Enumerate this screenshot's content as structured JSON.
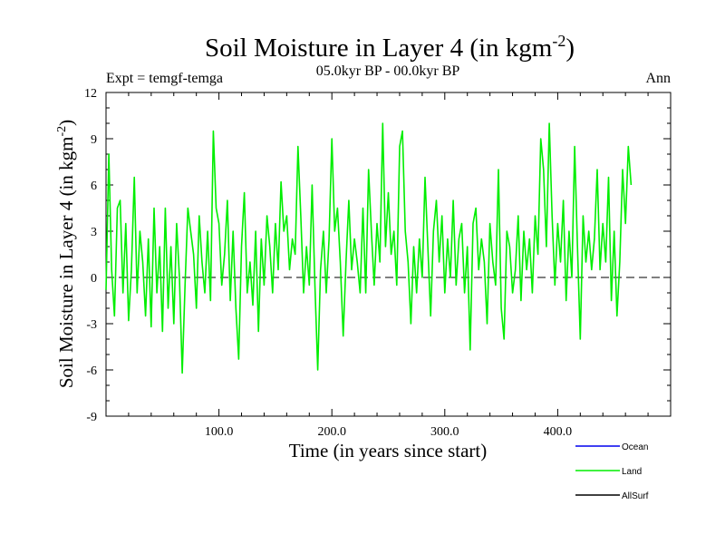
{
  "colors": {
    "land": "#00ee00",
    "ocean": "#0000ee",
    "allsurf": "#000000",
    "axis": "#000000"
  },
  "chart_data": {
    "type": "line",
    "title_main": "Soil Moisture in Layer 4 (in kgm",
    "title_sup": "-2",
    "title_close": ")",
    "expt_label": "Expt = temgf-temga",
    "subtitle": "05.0kyr BP - 00.0kyr BP",
    "season": "Ann",
    "xlabel": "Time (in years since start)",
    "ylabel_main": "Soil Moisture in Layer 4 (in kgm",
    "ylabel_sup": "-2",
    "ylabel_close": ")",
    "xlim": [
      0,
      500
    ],
    "ylim": [
      -9,
      12
    ],
    "x_ticks": [
      100,
      200,
      300,
      400
    ],
    "x_tick_labels": [
      "100.0",
      "200.0",
      "300.0",
      "400.0"
    ],
    "y_ticks": [
      -9,
      -6,
      -3,
      0,
      3,
      6,
      9,
      12
    ],
    "y_tick_labels": [
      "-9",
      "-6",
      "-3",
      "0",
      "3",
      "6",
      "9",
      "12"
    ],
    "zero_line": true,
    "legend": [
      {
        "name": "Ocean",
        "color_key": "ocean"
      },
      {
        "name": "Land",
        "color_key": "land"
      },
      {
        "name": "AllSurf",
        "color_key": "allsurf"
      }
    ],
    "series": [
      {
        "name": "Land",
        "color_key": "land",
        "x_start": 0,
        "x_step": 2.5,
        "values": [
          -0.8,
          8.0,
          0.5,
          -2.5,
          4.5,
          5.0,
          -1.0,
          3.5,
          -2.8,
          0.5,
          6.5,
          -1.0,
          3.0,
          1.0,
          -2.5,
          2.5,
          -3.2,
          4.5,
          -1.0,
          2.0,
          -3.5,
          4.5,
          -2.0,
          2.0,
          -3.0,
          3.5,
          0.0,
          -6.2,
          -0.5,
          4.5,
          3.0,
          1.5,
          -2.0,
          4.0,
          1.0,
          -1.0,
          3.0,
          -1.5,
          9.5,
          4.5,
          3.5,
          -0.5,
          1.5,
          5.0,
          -1.5,
          3.0,
          -2.0,
          -5.3,
          2.0,
          5.5,
          -1.0,
          1.0,
          -1.8,
          3.0,
          -3.5,
          2.5,
          -0.5,
          4.0,
          2.0,
          -1.0,
          3.5,
          0.5,
          6.2,
          3.0,
          4.0,
          0.5,
          2.5,
          1.5,
          8.5,
          4.0,
          -1.0,
          2.0,
          -0.5,
          6.0,
          -0.5,
          -6.0,
          0.5,
          3.0,
          -1.0,
          2.5,
          9.0,
          3.0,
          4.5,
          1.0,
          -3.8,
          1.0,
          5.0,
          0.5,
          2.5,
          1.0,
          -1.0,
          4.5,
          -1.0,
          7.0,
          3.0,
          -0.5,
          3.5,
          1.0,
          10.0,
          2.0,
          5.5,
          1.5,
          3.0,
          -0.5,
          8.5,
          9.5,
          3.0,
          1.0,
          -3.0,
          2.0,
          -1.0,
          2.5,
          0.0,
          6.5,
          2.0,
          -2.5,
          3.0,
          5.0,
          1.0,
          4.0,
          -1.0,
          2.5,
          0.0,
          5.0,
          -0.5,
          2.5,
          3.5,
          -1.0,
          2.0,
          -4.7,
          3.5,
          4.5,
          0.5,
          2.5,
          1.0,
          -3.0,
          3.5,
          1.0,
          -0.5,
          7.0,
          -2.0,
          -4.0,
          3.0,
          2.0,
          -1.0,
          0.5,
          4.0,
          -1.5,
          3.0,
          0.5,
          2.5,
          -1.0,
          4.0,
          1.5,
          9.0,
          7.0,
          2.0,
          10.0,
          4.0,
          -0.5,
          3.5,
          1.0,
          5.0,
          -1.5,
          3.0,
          0.0,
          8.5,
          2.0,
          -4.0,
          4.0,
          1.0,
          3.0,
          0.5,
          2.5,
          7.0,
          0.5,
          3.5,
          1.0,
          6.5,
          -1.5,
          3.0,
          -2.5,
          1.0,
          7.0,
          3.5,
          8.5,
          6.0
        ]
      }
    ]
  }
}
